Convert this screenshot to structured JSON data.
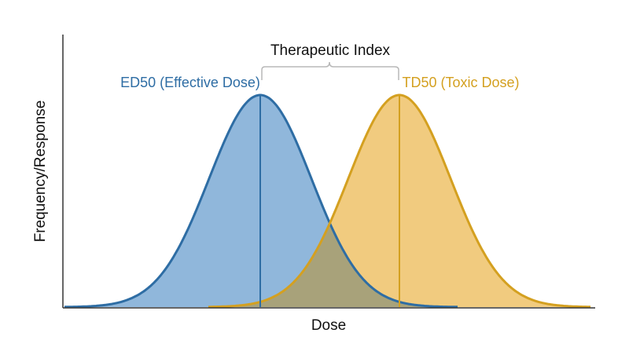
{
  "title": "Therapeutic Index",
  "x_axis_label": "Dose",
  "y_axis_label": "Frequency/Response",
  "curves": [
    {
      "key": "effective",
      "label": "ED50 (Effective Dose)",
      "stroke_color": "#2e6da4",
      "fill_color": "#8ab3d9"
    },
    {
      "key": "toxic",
      "label": "TD50 (Toxic Dose)",
      "stroke_color": "#d4a020",
      "fill_color": "#f0c878"
    }
  ],
  "colors": {
    "axis": "#333333",
    "bracket": "#b8b8b8",
    "text": "#111111",
    "overlap_fill": "#a8a27a"
  }
}
